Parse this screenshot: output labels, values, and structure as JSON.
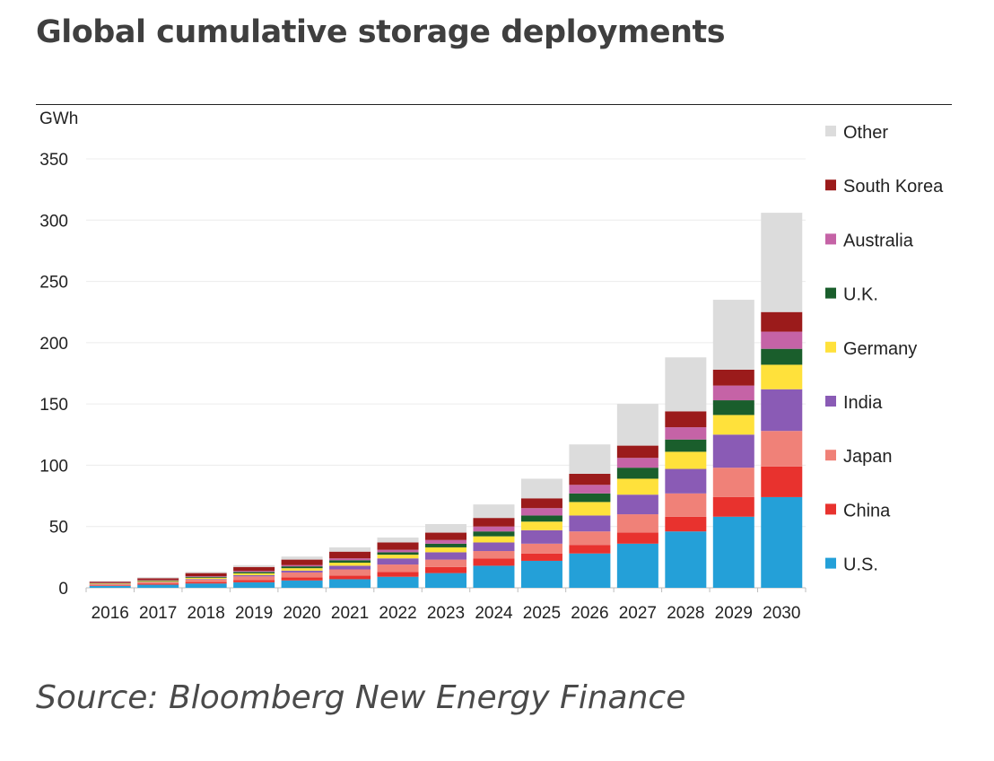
{
  "header": {
    "title": "Global cumulative storage deployments"
  },
  "footer": {
    "source": "Source: Bloomberg New Energy Finance"
  },
  "chart_data": {
    "type": "bar",
    "stacked": true,
    "title": "Global cumulative storage deployments",
    "ylabel": "GWh",
    "xlabel": "",
    "ylim": [
      0,
      350
    ],
    "yticks": [
      0,
      50,
      100,
      150,
      200,
      250,
      300,
      350
    ],
    "grid": true,
    "legend_position": "right",
    "categories": [
      "2016",
      "2017",
      "2018",
      "2019",
      "2020",
      "2021",
      "2022",
      "2023",
      "2024",
      "2025",
      "2026",
      "2027",
      "2028",
      "2029",
      "2030"
    ],
    "series": [
      {
        "name": "U.S.",
        "color": "#24a0d8",
        "values": [
          1.5,
          2.5,
          3.5,
          4.5,
          6,
          7,
          9,
          12,
          18,
          22,
          28,
          36,
          46,
          58,
          74
        ]
      },
      {
        "name": "China",
        "color": "#e8322e",
        "values": [
          0.5,
          0.8,
          1.2,
          1.8,
          2.5,
          3,
          4,
          5,
          6,
          6,
          7,
          9,
          12,
          16,
          25
        ]
      },
      {
        "name": "Japan",
        "color": "#f08178",
        "values": [
          0.8,
          1.2,
          2,
          3,
          4,
          5,
          6,
          6,
          6,
          8,
          11,
          15,
          19,
          24,
          29
        ]
      },
      {
        "name": "India",
        "color": "#8a5bb5",
        "values": [
          0.2,
          0.3,
          0.5,
          1,
          1.5,
          3,
          5,
          6,
          7,
          11,
          13,
          16,
          20,
          27,
          34
        ]
      },
      {
        "name": "Germany",
        "color": "#ffe13b",
        "values": [
          0.5,
          0.7,
          1,
          1.5,
          2,
          2.5,
          3,
          4,
          5,
          7,
          11,
          13,
          14,
          16,
          20
        ]
      },
      {
        "name": "U.K.",
        "color": "#1a5e2c",
        "values": [
          0.3,
          0.5,
          0.8,
          1.2,
          1.5,
          2,
          2,
          3,
          4,
          5,
          7,
          9,
          10,
          12,
          13
        ]
      },
      {
        "name": "Australia",
        "color": "#c563a6",
        "values": [
          0.2,
          0.3,
          0.5,
          0.8,
          1,
          1.5,
          2,
          3,
          4,
          6,
          7,
          8,
          10,
          12,
          14
        ]
      },
      {
        "name": "South Korea",
        "color": "#9b1b1b",
        "values": [
          1,
          1.5,
          2.5,
          3.2,
          4.5,
          5.5,
          6,
          6,
          7,
          8,
          9,
          10,
          13,
          13,
          16
        ]
      },
      {
        "name": "Other",
        "color": "#dcdcdc",
        "values": [
          0.5,
          0.8,
          1,
          1.5,
          2.5,
          3.5,
          4,
          7,
          11,
          16,
          24,
          34,
          44,
          57,
          81
        ]
      }
    ]
  }
}
